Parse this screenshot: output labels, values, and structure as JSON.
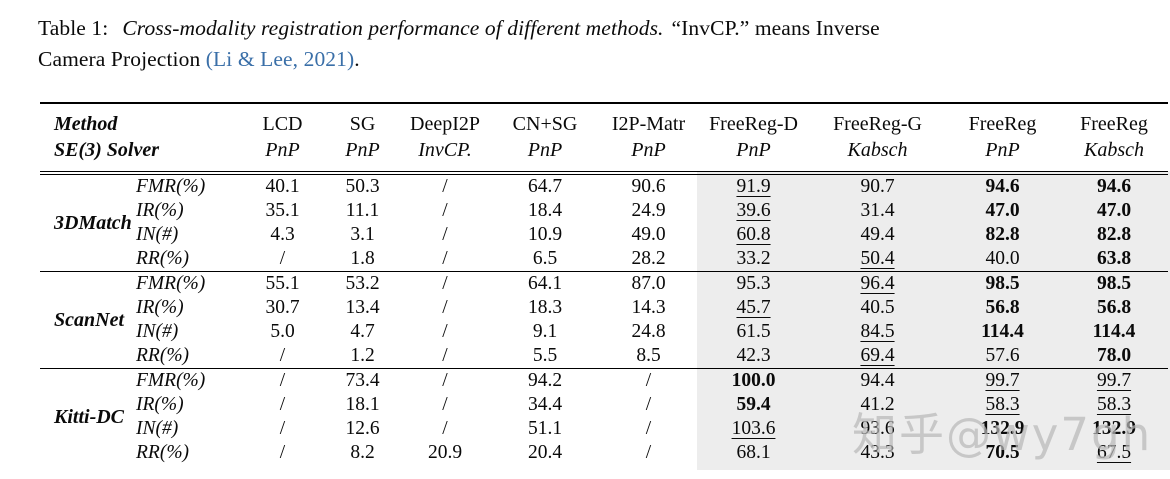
{
  "caption": {
    "label": "Table 1:",
    "italic_text": "Cross-modality registration performance of different methods.",
    "after_italic": "“InvCP.” means Inverse",
    "line2_pre": "Camera Projection ",
    "citation": "(Li & Lee, 2021)",
    "period": "."
  },
  "colors": {
    "citation_blue": "#3a6fa8",
    "shaded_column_bg": "#ededed",
    "watermark_gray": "#b9b9b9"
  },
  "watermark": {
    "text": "知乎@wy7gh"
  },
  "table": {
    "header": {
      "method_label": "Method",
      "solver_label": "SE(3) Solver",
      "methods": [
        "LCD",
        "SG",
        "DeepI2P",
        "CN+SG",
        "I2P-Matr",
        "FreeReg-D",
        "FreeReg-G",
        "FreeReg",
        "FreeReg"
      ],
      "solvers": [
        "PnP",
        "PnP",
        "InvCP.",
        "PnP",
        "PnP",
        "PnP",
        "Kabsch",
        "PnP",
        "Kabsch"
      ]
    },
    "groups": [
      {
        "dataset": "3DMatch",
        "rows": [
          {
            "metric": "FMR(%)",
            "v": [
              "40.1",
              "50.3",
              "/",
              "64.7",
              "90.6",
              "91.9",
              "90.7",
              "94.6",
              "94.6"
            ],
            "s": [
              "",
              "",
              "",
              "",
              "",
              "u",
              "",
              "b",
              "b"
            ]
          },
          {
            "metric": "IR(%)",
            "v": [
              "35.1",
              "11.1",
              "/",
              "18.4",
              "24.9",
              "39.6",
              "31.4",
              "47.0",
              "47.0"
            ],
            "s": [
              "",
              "",
              "",
              "",
              "",
              "u",
              "",
              "b",
              "b"
            ]
          },
          {
            "metric": "IN(#)",
            "v": [
              "4.3",
              "3.1",
              "/",
              "10.9",
              "49.0",
              "60.8",
              "49.4",
              "82.8",
              "82.8"
            ],
            "s": [
              "",
              "",
              "",
              "",
              "",
              "u",
              "",
              "b",
              "b"
            ]
          },
          {
            "metric": "RR(%)",
            "v": [
              "/",
              "1.8",
              "/",
              "6.5",
              "28.2",
              "33.2",
              "50.4",
              "40.0",
              "63.8"
            ],
            "s": [
              "",
              "",
              "",
              "",
              "",
              "",
              "u",
              "",
              "b"
            ]
          }
        ]
      },
      {
        "dataset": "ScanNet",
        "rows": [
          {
            "metric": "FMR(%)",
            "v": [
              "55.1",
              "53.2",
              "/",
              "64.1",
              "87.0",
              "95.3",
              "96.4",
              "98.5",
              "98.5"
            ],
            "s": [
              "",
              "",
              "",
              "",
              "",
              "",
              "u",
              "b",
              "b"
            ]
          },
          {
            "metric": "IR(%)",
            "v": [
              "30.7",
              "13.4",
              "/",
              "18.3",
              "14.3",
              "45.7",
              "40.5",
              "56.8",
              "56.8"
            ],
            "s": [
              "",
              "",
              "",
              "",
              "",
              "u",
              "",
              "b",
              "b"
            ]
          },
          {
            "metric": "IN(#)",
            "v": [
              "5.0",
              "4.7",
              "/",
              "9.1",
              "24.8",
              "61.5",
              "84.5",
              "114.4",
              "114.4"
            ],
            "s": [
              "",
              "",
              "",
              "",
              "",
              "",
              "u",
              "b",
              "b"
            ]
          },
          {
            "metric": "RR(%)",
            "v": [
              "/",
              "1.2",
              "/",
              "5.5",
              "8.5",
              "42.3",
              "69.4",
              "57.6",
              "78.0"
            ],
            "s": [
              "",
              "",
              "",
              "",
              "",
              "",
              "u",
              "",
              "b"
            ]
          }
        ]
      },
      {
        "dataset": "Kitti-DC",
        "rows": [
          {
            "metric": "FMR(%)",
            "v": [
              "/",
              "73.4",
              "/",
              "94.2",
              "/",
              "100.0",
              "94.4",
              "99.7",
              "99.7"
            ],
            "s": [
              "",
              "",
              "",
              "",
              "",
              "b",
              "",
              "u",
              "u"
            ]
          },
          {
            "metric": "IR(%)",
            "v": [
              "/",
              "18.1",
              "/",
              "34.4",
              "/",
              "59.4",
              "41.2",
              "58.3",
              "58.3"
            ],
            "s": [
              "",
              "",
              "",
              "",
              "",
              "b",
              "",
              "u",
              "u"
            ]
          },
          {
            "metric": "IN(#)",
            "v": [
              "/",
              "12.6",
              "/",
              "51.1",
              "/",
              "103.6",
              "93.6",
              "132.9",
              "132.9"
            ],
            "s": [
              "",
              "",
              "",
              "",
              "",
              "u",
              "",
              "b",
              "b"
            ]
          },
          {
            "metric": "RR(%)",
            "v": [
              "/",
              "8.2",
              "20.9",
              "20.4",
              "/",
              "68.1",
              "43.3",
              "70.5",
              "67.5"
            ],
            "s": [
              "",
              "",
              "",
              "",
              "",
              "",
              "",
              "b",
              "u"
            ]
          }
        ]
      }
    ]
  }
}
